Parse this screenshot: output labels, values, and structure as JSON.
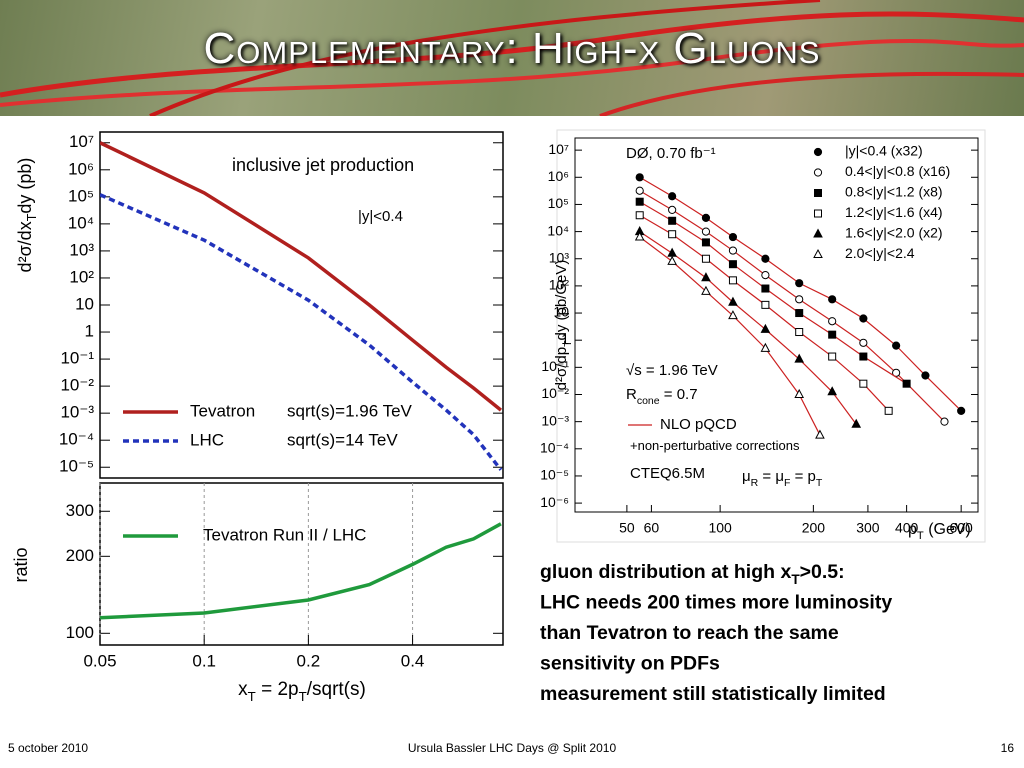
{
  "slide": {
    "title": "Complementary: High-x Gluons",
    "notes": [
      [
        "gluon distribution at high x",
        "T",
        ">0.5:"
      ],
      [
        "LHC needs 200 times more luminosity"
      ],
      [
        "than Tevatron to reach the same"
      ],
      [
        "sensitivity on PDFs"
      ],
      [
        "measurement still statistically limited"
      ]
    ],
    "footer": {
      "date": "5 october 2010",
      "event": "Ursula Bassler LHC Days @ Split 2010",
      "page": "16"
    }
  },
  "chart_data": [
    {
      "type": "line",
      "xscale": "log",
      "yscale": "log",
      "y_label": [
        "d²σ/dx",
        "T",
        "dy  (pb)"
      ],
      "annotations": [
        [
          "inclusive jet production"
        ],
        [
          "|y|<0.4"
        ]
      ],
      "xlim": [
        0.05,
        0.73
      ],
      "ylim": [
        4e-06,
        25000000
      ],
      "yticks": [
        {
          "value": 10000000,
          "label": "10⁷"
        },
        {
          "value": 1000000,
          "label": "10⁶"
        },
        {
          "value": 100000,
          "label": "10⁵"
        },
        {
          "value": 10000,
          "label": "10⁴"
        },
        {
          "value": 1000,
          "label": "10³"
        },
        {
          "value": 100,
          "label": "10²"
        },
        10,
        1,
        {
          "value": 0.1,
          "label": "10⁻¹"
        },
        {
          "value": 0.01,
          "label": "10⁻²"
        },
        {
          "value": 0.001,
          "label": "10⁻³"
        },
        {
          "value": 0.0001,
          "label": "10⁻⁴"
        },
        {
          "value": 1e-05,
          "label": "10⁻⁵"
        }
      ],
      "x": [
        0.05,
        0.1,
        0.2,
        0.3,
        0.4,
        0.5,
        0.6,
        0.72
      ],
      "series": [
        {
          "name": "Tevatron",
          "note": "sqrt(s)=1.96 TeV",
          "color": "#b0201e",
          "dash": false,
          "values": [
            10000000,
            140000,
            550,
            10,
            0.5,
            0.05,
            0.0085,
            0.0013
          ]
        },
        {
          "name": "LHC",
          "note": "sqrt(s)=14 TeV",
          "color": "#2233bb",
          "dash": true,
          "values": [
            120000,
            2500,
            15,
            0.33,
            0.014,
            0.0013,
            0.00016,
            8e-06
          ]
        }
      ]
    },
    {
      "type": "line",
      "xscale": "log",
      "yscale": "log",
      "grid": true,
      "y_label": [
        "ratio"
      ],
      "x_label": [
        "x",
        "T",
        " = 2p",
        "T",
        "/sqrt(s)"
      ],
      "xlim": [
        0.05,
        0.73
      ],
      "ylim": [
        90,
        387
      ],
      "xticks": [
        0.05,
        0.1,
        0.2,
        0.4
      ],
      "yticks": [
        100,
        200,
        300
      ],
      "x": [
        0.05,
        0.1,
        0.2,
        0.3,
        0.4,
        0.5,
        0.6,
        0.72
      ],
      "series": [
        {
          "name": "Tevatron Run II  /  LHC",
          "color": "#1f9a3c",
          "dash": false,
          "values": [
            115,
            120,
            135,
            155,
            186,
            217,
            234,
            268
          ]
        }
      ]
    },
    {
      "type": "scatter",
      "xscale": "log",
      "yscale": "log",
      "y_label": [
        "d²σ/dp",
        "T",
        "dy (pb/GeV)"
      ],
      "x_label": [
        "p",
        "T",
        " (GeV)"
      ],
      "annotations": [
        [
          "DØ, 0.70 fb⁻¹"
        ],
        [
          "√s = 1.96 TeV"
        ],
        [
          "R",
          "cone",
          " = 0.7"
        ],
        [
          "NLO pQCD"
        ],
        [
          "+non-perturbative corrections"
        ],
        [
          "CTEQ6.5M"
        ],
        [
          "μ",
          "R",
          " = μ",
          "F",
          " = p",
          "T"
        ]
      ],
      "curve_color": "#cc2222",
      "xlim": [
        34,
        680
      ],
      "ylim": [
        4.7e-07,
        28000000
      ],
      "xticks": [
        50,
        60,
        100,
        200,
        300,
        400,
        600
      ],
      "yticks": [
        {
          "value": 10000000,
          "label": "10⁷"
        },
        {
          "value": 1000000,
          "label": "10⁶"
        },
        {
          "value": 100000,
          "label": "10⁵"
        },
        {
          "value": 10000,
          "label": "10⁴"
        },
        {
          "value": 1000,
          "label": "10³"
        },
        {
          "value": 100,
          "label": "10²"
        },
        10,
        1,
        {
          "value": 0.1,
          "label": "10⁻¹"
        },
        {
          "value": 0.01,
          "label": "10⁻²"
        },
        {
          "value": 0.001,
          "label": "10⁻³"
        },
        {
          "value": 0.0001,
          "label": "10⁻⁴"
        },
        {
          "value": 1e-05,
          "label": "10⁻⁵"
        },
        {
          "value": 1e-06,
          "label": "10⁻⁶"
        }
      ],
      "series": [
        {
          "name": "|y|<0.4 (x32)",
          "marker": "circle",
          "color": "#000000",
          "x": [
            55,
            70,
            90,
            110,
            140,
            180,
            230,
            290,
            370,
            460,
            600
          ],
          "values": [
            1000000,
            200000,
            32000,
            6300,
            1000,
            126,
            32,
            6.3,
            0.63,
            0.05,
            0.0025
          ]
        },
        {
          "name": "0.4<|y|<0.8 (x16)",
          "marker": "circle-open",
          "color": "#000000",
          "x": [
            55,
            70,
            90,
            110,
            140,
            180,
            230,
            290,
            370,
            530
          ],
          "values": [
            320000,
            63000,
            10000,
            2000,
            250,
            32,
            5,
            0.8,
            0.063,
            0.001
          ]
        },
        {
          "name": "0.8<|y|<1.2 (x8)",
          "marker": "square",
          "color": "#000000",
          "x": [
            55,
            70,
            90,
            110,
            140,
            180,
            230,
            290,
            400
          ],
          "values": [
            126000,
            25000,
            4000,
            630,
            80,
            10,
            1.6,
            0.25,
            0.025
          ]
        },
        {
          "name": "1.2<|y|<1.6 (x4)",
          "marker": "square-open",
          "color": "#000000",
          "x": [
            55,
            70,
            90,
            110,
            140,
            180,
            230,
            290,
            350
          ],
          "values": [
            40000,
            8000,
            1000,
            160,
            20,
            2,
            0.25,
            0.025,
            0.0025
          ]
        },
        {
          "name": "1.6<|y|<2.0 (x2)",
          "marker": "triangle",
          "color": "#000000",
          "x": [
            55,
            70,
            90,
            110,
            140,
            180,
            230,
            275
          ],
          "values": [
            10000,
            1600,
            200,
            25,
            2.5,
            0.2,
            0.0126,
            0.0008
          ]
        },
        {
          "name": "2.0<|y|<2.4",
          "marker": "triangle-open",
          "color": "#000000",
          "x": [
            55,
            70,
            90,
            110,
            140,
            180,
            210
          ],
          "values": [
            6300,
            800,
            63,
            8,
            0.5,
            0.01,
            0.00032
          ]
        }
      ]
    }
  ]
}
